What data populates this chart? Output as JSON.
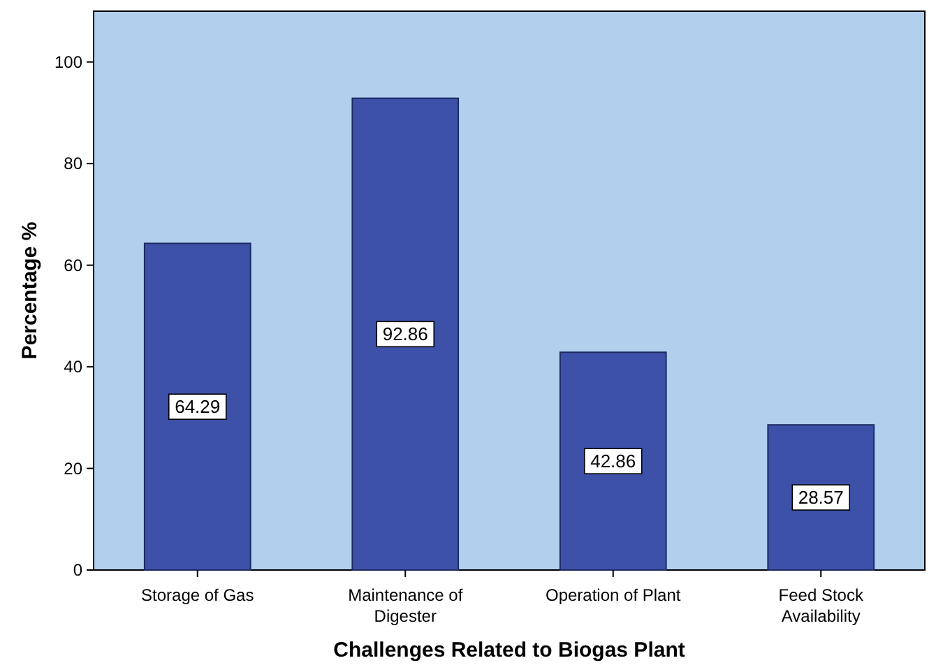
{
  "chart_data": {
    "type": "bar",
    "xlabel": "Challenges Related to Biogas Plant",
    "ylabel": "Percentage %",
    "categories": [
      "Storage of Gas",
      "Maintenance of Digester",
      "Operation of Plant",
      "Feed Stock Availability"
    ],
    "values": [
      64.29,
      92.86,
      42.86,
      28.57
    ],
    "color": "#3d51a9",
    "ylim": [
      0,
      110
    ],
    "yticks": [
      0,
      20,
      40,
      60,
      80,
      100
    ],
    "grid": false,
    "data_labels": true
  }
}
